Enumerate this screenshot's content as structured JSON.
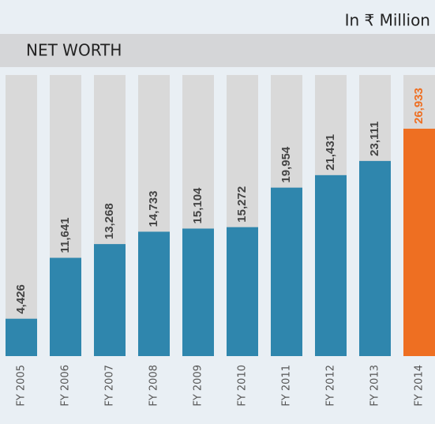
{
  "chart_data": {
    "type": "bar",
    "title": "NET WORTH",
    "unit_label": "In ₹ Million",
    "categories": [
      "FY 2005",
      "FY 2006",
      "FY 2007",
      "FY 2008",
      "FY 2009",
      "FY 2010",
      "FY 2011",
      "FY 2012",
      "FY 2013",
      "FY 2014"
    ],
    "values": [
      4426,
      11641,
      13268,
      14733,
      15104,
      15272,
      19954,
      21431,
      23111,
      26933
    ],
    "value_labels": [
      "4,426",
      "11,641",
      "13,268",
      "14,733",
      "15,104",
      "15,272",
      "19,954",
      "21,431",
      "23,111",
      "26,933"
    ],
    "colors": [
      "#2f86ad",
      "#2f86ad",
      "#2f86ad",
      "#2f86ad",
      "#2f86ad",
      "#2f86ad",
      "#2f86ad",
      "#2f86ad",
      "#2f86ad",
      "#ee6f22"
    ],
    "label_colors": [
      "#444444",
      "#444444",
      "#444444",
      "#444444",
      "#444444",
      "#444444",
      "#444444",
      "#444444",
      "#444444",
      "#ee6f22"
    ]
  }
}
